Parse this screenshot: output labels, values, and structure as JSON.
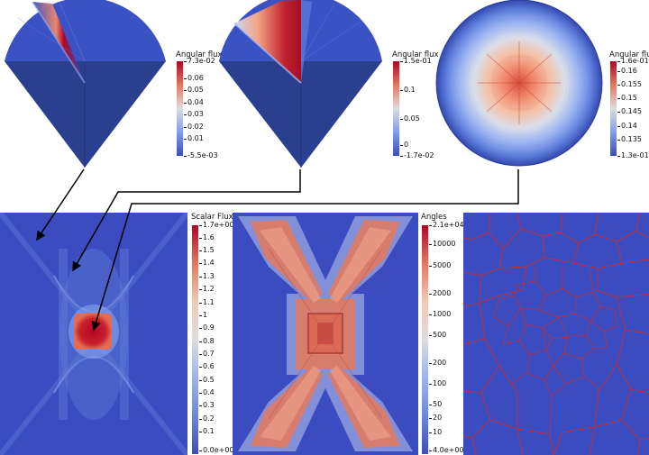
{
  "colors": {
    "cold": "#3a4cc0",
    "mid": "#dddddd",
    "hot": "#b40426",
    "mesh_lines": "#c0303a"
  },
  "top": {
    "left": {
      "title": "Angular flux",
      "ticks": [
        "7.3e-02",
        "0.06",
        "0.05",
        "0.04",
        "0.03",
        "0.02",
        "0.01",
        "-5.5e-03"
      ]
    },
    "middle": {
      "title": "Angular flux",
      "ticks": [
        "1.5e-01",
        "0.1",
        "0.05",
        "0",
        "-1.7e-02"
      ]
    },
    "right": {
      "title": "Angular flux",
      "ticks": [
        "1.6e-01",
        "0.16",
        "0.155",
        "0.15",
        "0.145",
        "0.14",
        "0.135",
        "1.3e-01"
      ]
    }
  },
  "bottom": {
    "scalar": {
      "title": "Scalar Flux",
      "ticks": [
        "1.7e+00",
        "1.6",
        "1.5",
        "1.4",
        "1.3",
        "1.2",
        "1.1",
        "1",
        "0.9",
        "0.8",
        "0.7",
        "0.6",
        "0.5",
        "0.4",
        "0.3",
        "0.2",
        "0.1",
        "0.0e+00"
      ]
    },
    "angles": {
      "title": "Angles",
      "ticks": [
        "2.1e+04",
        "10000",
        "5000",
        "2000",
        "1000",
        "500",
        "200",
        "100",
        "50",
        "20",
        "10",
        "4.0e+00"
      ]
    }
  }
}
